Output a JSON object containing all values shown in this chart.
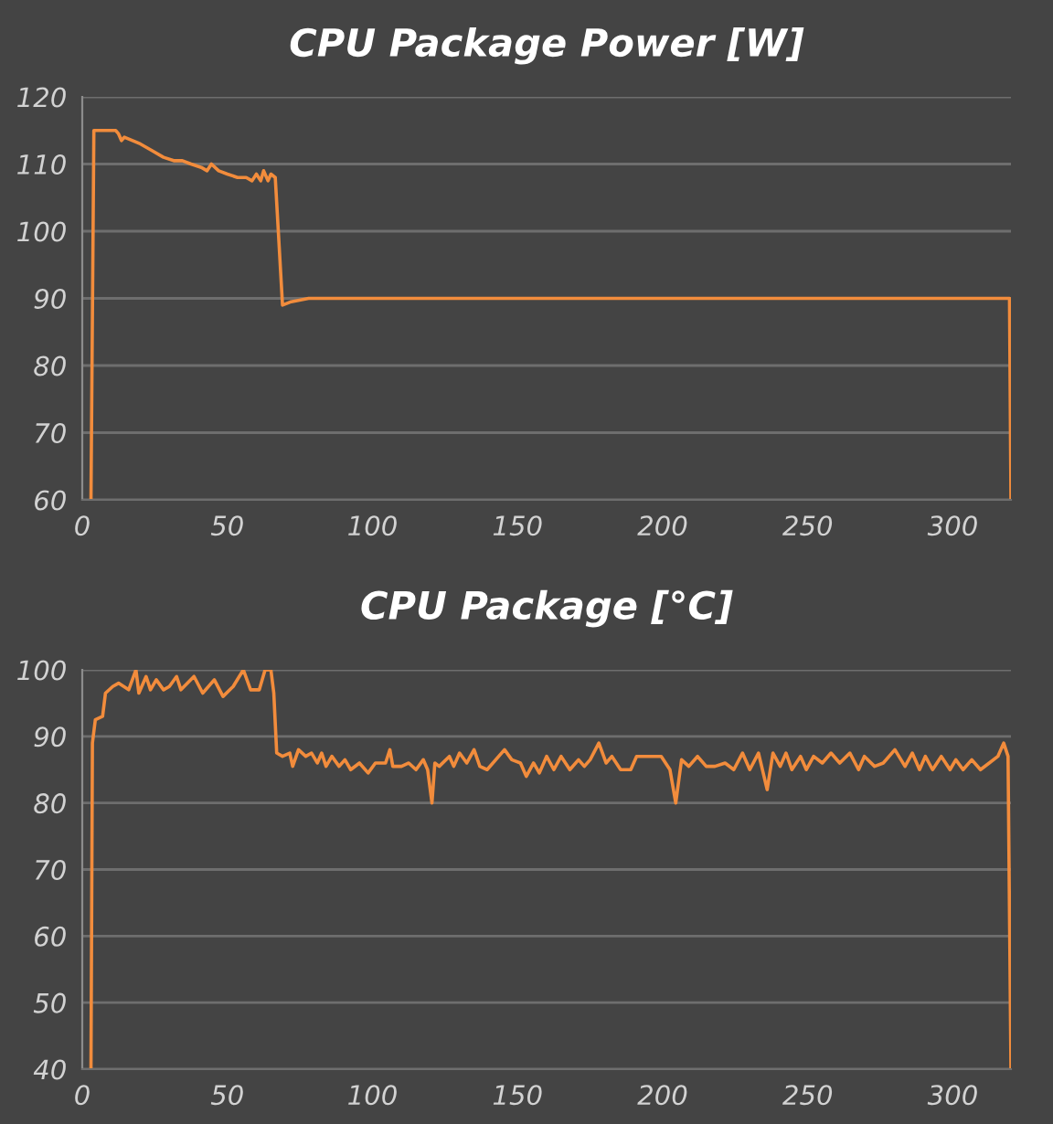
{
  "chart_data": [
    {
      "type": "line",
      "title": "CPU Package Power [W]",
      "grid": "y",
      "xlim": [
        0,
        320
      ],
      "xticks": [
        0,
        50,
        100,
        150,
        200,
        250,
        300
      ],
      "ylim": [
        60,
        120
      ],
      "yticks": [
        60,
        70,
        80,
        90,
        100,
        110,
        120
      ],
      "series": [
        {
          "color": "#f28c3c",
          "x": [
            3,
            4,
            11.5,
            12.5,
            13.5,
            14.5,
            20,
            24,
            28,
            31.5,
            34.5,
            37.5,
            41,
            43,
            44.5,
            47,
            50,
            53.5,
            56.5,
            58.5,
            60,
            61.5,
            62.5,
            64,
            65,
            66.5,
            69,
            72,
            78,
            100,
            150,
            200,
            250,
            300,
            319.5,
            320
          ],
          "values": [
            60,
            115,
            115,
            114.5,
            113.5,
            114,
            113,
            112,
            111,
            110.5,
            110.5,
            110,
            109.5,
            109,
            110,
            109,
            108.5,
            108,
            108,
            107.5,
            108.5,
            107.5,
            109,
            107.5,
            108.5,
            108,
            89,
            89.5,
            90,
            90,
            90,
            90,
            90,
            90,
            90,
            60
          ]
        }
      ]
    },
    {
      "type": "line",
      "title": "CPU Package [°C]",
      "grid": "y",
      "xlim": [
        0,
        320
      ],
      "xticks": [
        0,
        50,
        100,
        150,
        200,
        250,
        300
      ],
      "ylim": [
        40,
        100
      ],
      "yticks": [
        40,
        50,
        60,
        70,
        80,
        90,
        100
      ],
      "series": [
        {
          "color": "#f28c3c",
          "x": [
            3,
            3.5,
            4.5,
            7,
            8,
            10.5,
            12.5,
            16,
            18.5,
            19.5,
            22,
            23.5,
            25.5,
            28,
            30,
            32.5,
            34,
            38.5,
            41.5,
            45.5,
            48.5,
            52,
            55.5,
            58,
            61,
            63,
            65,
            66,
            67,
            69,
            71.5,
            72.5,
            74.5,
            77,
            79,
            81,
            82.5,
            84,
            86,
            88.5,
            90.5,
            92.5,
            95.5,
            98.5,
            101,
            104.5,
            106,
            107,
            110,
            112.5,
            115,
            117.5,
            119,
            120.5,
            121.5,
            123,
            126.5,
            128,
            130,
            132.5,
            135,
            137,
            139.5,
            145.5,
            148,
            151,
            153,
            155.5,
            157.5,
            160,
            162.5,
            165,
            168,
            171,
            173,
            175,
            178,
            180.5,
            182.5,
            185.5,
            189,
            191,
            199.5,
            202.5,
            204.5,
            206.5,
            209,
            212,
            215,
            218,
            221.5,
            224.5,
            227.5,
            230,
            233,
            236,
            238,
            240.5,
            242.5,
            244.5,
            247.5,
            249.5,
            252,
            255,
            258,
            261,
            264.5,
            267.5,
            269.5,
            273,
            276,
            280,
            283.5,
            286,
            288.5,
            290.5,
            293,
            296,
            299,
            301,
            303.5,
            306.5,
            309.5,
            312.5,
            315.5,
            317.5,
            319,
            320
          ],
          "values": [
            40,
            89,
            92.5,
            93,
            96.5,
            97.5,
            98,
            97,
            100,
            96.5,
            99,
            97,
            98.5,
            97,
            97.5,
            99,
            97,
            99,
            96.5,
            98.5,
            96,
            97.5,
            100,
            97,
            97,
            100,
            100,
            96.5,
            87.5,
            87,
            87.5,
            85.5,
            88,
            87,
            87.5,
            86,
            87.5,
            85.5,
            87,
            85.5,
            86.5,
            85,
            86,
            84.5,
            86,
            86,
            88,
            85.5,
            85.5,
            86,
            85,
            86.5,
            85,
            80,
            86,
            85.5,
            87,
            85.5,
            87.5,
            86,
            88,
            85.5,
            85,
            88,
            86.5,
            86,
            84,
            86,
            84.5,
            87,
            85,
            87,
            85,
            86.5,
            85.5,
            86.5,
            89,
            86,
            87,
            85,
            85,
            87,
            87,
            85,
            80,
            86.5,
            85.5,
            87,
            85.5,
            85.5,
            86,
            85,
            87.5,
            85,
            87.5,
            82,
            87.5,
            85.5,
            87.5,
            85,
            87,
            85,
            87,
            86,
            87.5,
            86,
            87.5,
            85,
            87,
            85.5,
            86,
            88,
            85.5,
            87.5,
            85,
            87,
            85,
            87,
            85,
            86.5,
            85,
            86.5,
            85,
            86,
            87,
            89,
            87,
            40
          ]
        }
      ]
    }
  ]
}
